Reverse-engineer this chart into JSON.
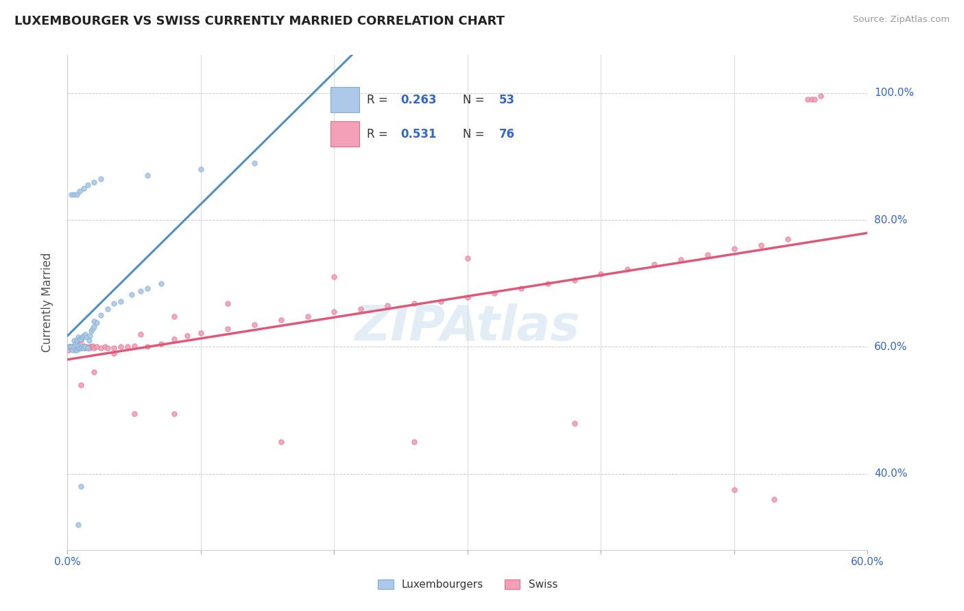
{
  "title": "LUXEMBOURGER VS SWISS CURRENTLY MARRIED CORRELATION CHART",
  "source_text": "Source: ZipAtlas.com",
  "ylabel_label": "Currently Married",
  "xlim": [
    0.0,
    0.6
  ],
  "ylim": [
    0.28,
    1.06
  ],
  "legend_R1": "0.263",
  "legend_N1": "53",
  "legend_R2": "0.531",
  "legend_N2": "76",
  "legend_label1": "Luxembourgers",
  "legend_label2": "Swiss",
  "color_lux": "#adc8e8",
  "color_swiss": "#f4a0b8",
  "color_lux_edge": "#7aafd4",
  "color_swiss_edge": "#e0708a",
  "color_lux_line": "#4d8fc4",
  "color_swiss_line": "#e05878",
  "color_dashed": "#9ab8d0",
  "watermark_color": "#ccdff0",
  "lux_x": [
    0.001,
    0.002,
    0.003,
    0.004,
    0.005,
    0.005,
    0.006,
    0.006,
    0.007,
    0.007,
    0.008,
    0.008,
    0.008,
    0.009,
    0.009,
    0.01,
    0.01,
    0.011,
    0.011,
    0.012,
    0.012,
    0.013,
    0.013,
    0.014,
    0.015,
    0.016,
    0.017,
    0.018,
    0.019,
    0.02,
    0.02,
    0.022,
    0.025,
    0.03,
    0.035,
    0.04,
    0.048,
    0.055,
    0.06,
    0.07,
    0.003,
    0.005,
    0.007,
    0.009,
    0.012,
    0.015,
    0.02,
    0.025,
    0.06,
    0.1,
    0.14,
    0.01,
    0.008
  ],
  "lux_y": [
    0.6,
    0.6,
    0.6,
    0.595,
    0.6,
    0.61,
    0.595,
    0.605,
    0.595,
    0.61,
    0.598,
    0.602,
    0.615,
    0.598,
    0.612,
    0.598,
    0.612,
    0.6,
    0.615,
    0.598,
    0.618,
    0.6,
    0.62,
    0.615,
    0.598,
    0.61,
    0.618,
    0.625,
    0.628,
    0.632,
    0.64,
    0.638,
    0.65,
    0.66,
    0.668,
    0.672,
    0.682,
    0.688,
    0.692,
    0.7,
    0.84,
    0.84,
    0.84,
    0.845,
    0.85,
    0.855,
    0.86,
    0.865,
    0.87,
    0.88,
    0.89,
    0.38,
    0.32
  ],
  "swiss_x": [
    0.001,
    0.002,
    0.003,
    0.004,
    0.005,
    0.006,
    0.007,
    0.007,
    0.008,
    0.009,
    0.01,
    0.01,
    0.011,
    0.012,
    0.013,
    0.014,
    0.015,
    0.016,
    0.017,
    0.018,
    0.019,
    0.02,
    0.022,
    0.025,
    0.028,
    0.03,
    0.035,
    0.04,
    0.045,
    0.05,
    0.06,
    0.07,
    0.08,
    0.09,
    0.1,
    0.12,
    0.14,
    0.16,
    0.18,
    0.2,
    0.22,
    0.24,
    0.26,
    0.28,
    0.3,
    0.32,
    0.34,
    0.36,
    0.38,
    0.4,
    0.42,
    0.44,
    0.46,
    0.48,
    0.5,
    0.52,
    0.54,
    0.555,
    0.558,
    0.56,
    0.565,
    0.01,
    0.02,
    0.035,
    0.055,
    0.08,
    0.12,
    0.2,
    0.3,
    0.05,
    0.08,
    0.16,
    0.26,
    0.38,
    0.5,
    0.53
  ],
  "swiss_y": [
    0.595,
    0.6,
    0.6,
    0.6,
    0.598,
    0.598,
    0.6,
    0.605,
    0.598,
    0.6,
    0.598,
    0.61,
    0.6,
    0.602,
    0.598,
    0.6,
    0.598,
    0.598,
    0.6,
    0.6,
    0.602,
    0.598,
    0.6,
    0.598,
    0.6,
    0.598,
    0.598,
    0.6,
    0.6,
    0.602,
    0.6,
    0.605,
    0.612,
    0.618,
    0.622,
    0.628,
    0.635,
    0.642,
    0.648,
    0.655,
    0.66,
    0.665,
    0.668,
    0.672,
    0.678,
    0.685,
    0.692,
    0.7,
    0.705,
    0.715,
    0.722,
    0.73,
    0.738,
    0.745,
    0.755,
    0.76,
    0.77,
    0.99,
    0.99,
    0.99,
    0.995,
    0.54,
    0.56,
    0.59,
    0.62,
    0.648,
    0.668,
    0.71,
    0.74,
    0.495,
    0.495,
    0.45,
    0.45,
    0.48,
    0.375,
    0.36
  ]
}
